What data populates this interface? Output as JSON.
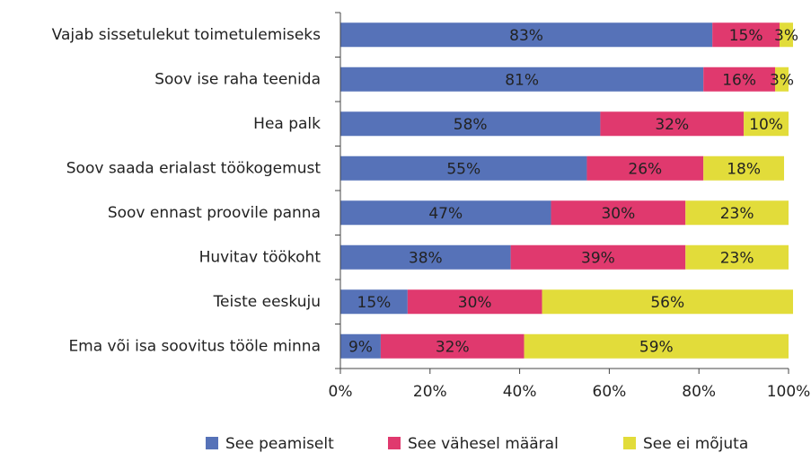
{
  "chart_data": {
    "type": "stacked_bar_horizontal",
    "categories": [
      "Vajab sissetulekut toimetulemiseks",
      "Soov ise raha teenida",
      "Hea palk",
      "Soov saada erialast töökogemust",
      "Soov ennast proovile panna",
      "Huvitav töökoht",
      "Teiste eeskuju",
      "Ema või isa soovitus tööle minna"
    ],
    "series": [
      {
        "name": "See peamiselt",
        "color": "#5672b8",
        "values": [
          83,
          81,
          58,
          55,
          47,
          38,
          15,
          9
        ],
        "value_labels": [
          "83%",
          "81%",
          "58%",
          "55%",
          "47%",
          "38%",
          "15%",
          "9%"
        ]
      },
      {
        "name": "See vähesel määral",
        "color": "#e0396e",
        "values": [
          15,
          16,
          32,
          26,
          30,
          39,
          30,
          32
        ],
        "value_labels": [
          "15%",
          "16%",
          "32%",
          "26%",
          "30%",
          "39%",
          "30%",
          "32%"
        ]
      },
      {
        "name": "See ei mõjuta",
        "color": "#e2dc3a",
        "values": [
          3,
          3,
          10,
          18,
          23,
          23,
          56,
          59
        ],
        "value_labels": [
          "3%",
          "3%",
          "10%",
          "18%",
          "23%",
          "23%",
          "56%",
          "59%"
        ]
      }
    ],
    "xlim": [
      0,
      100
    ],
    "xticks": [
      {
        "value": 0,
        "label": "0%"
      },
      {
        "value": 20,
        "label": "20%"
      },
      {
        "value": 40,
        "label": "40%"
      },
      {
        "value": 60,
        "label": "60%"
      },
      {
        "value": 80,
        "label": "80%"
      },
      {
        "value": 100,
        "label": "100%"
      }
    ],
    "legend": "bottom"
  }
}
